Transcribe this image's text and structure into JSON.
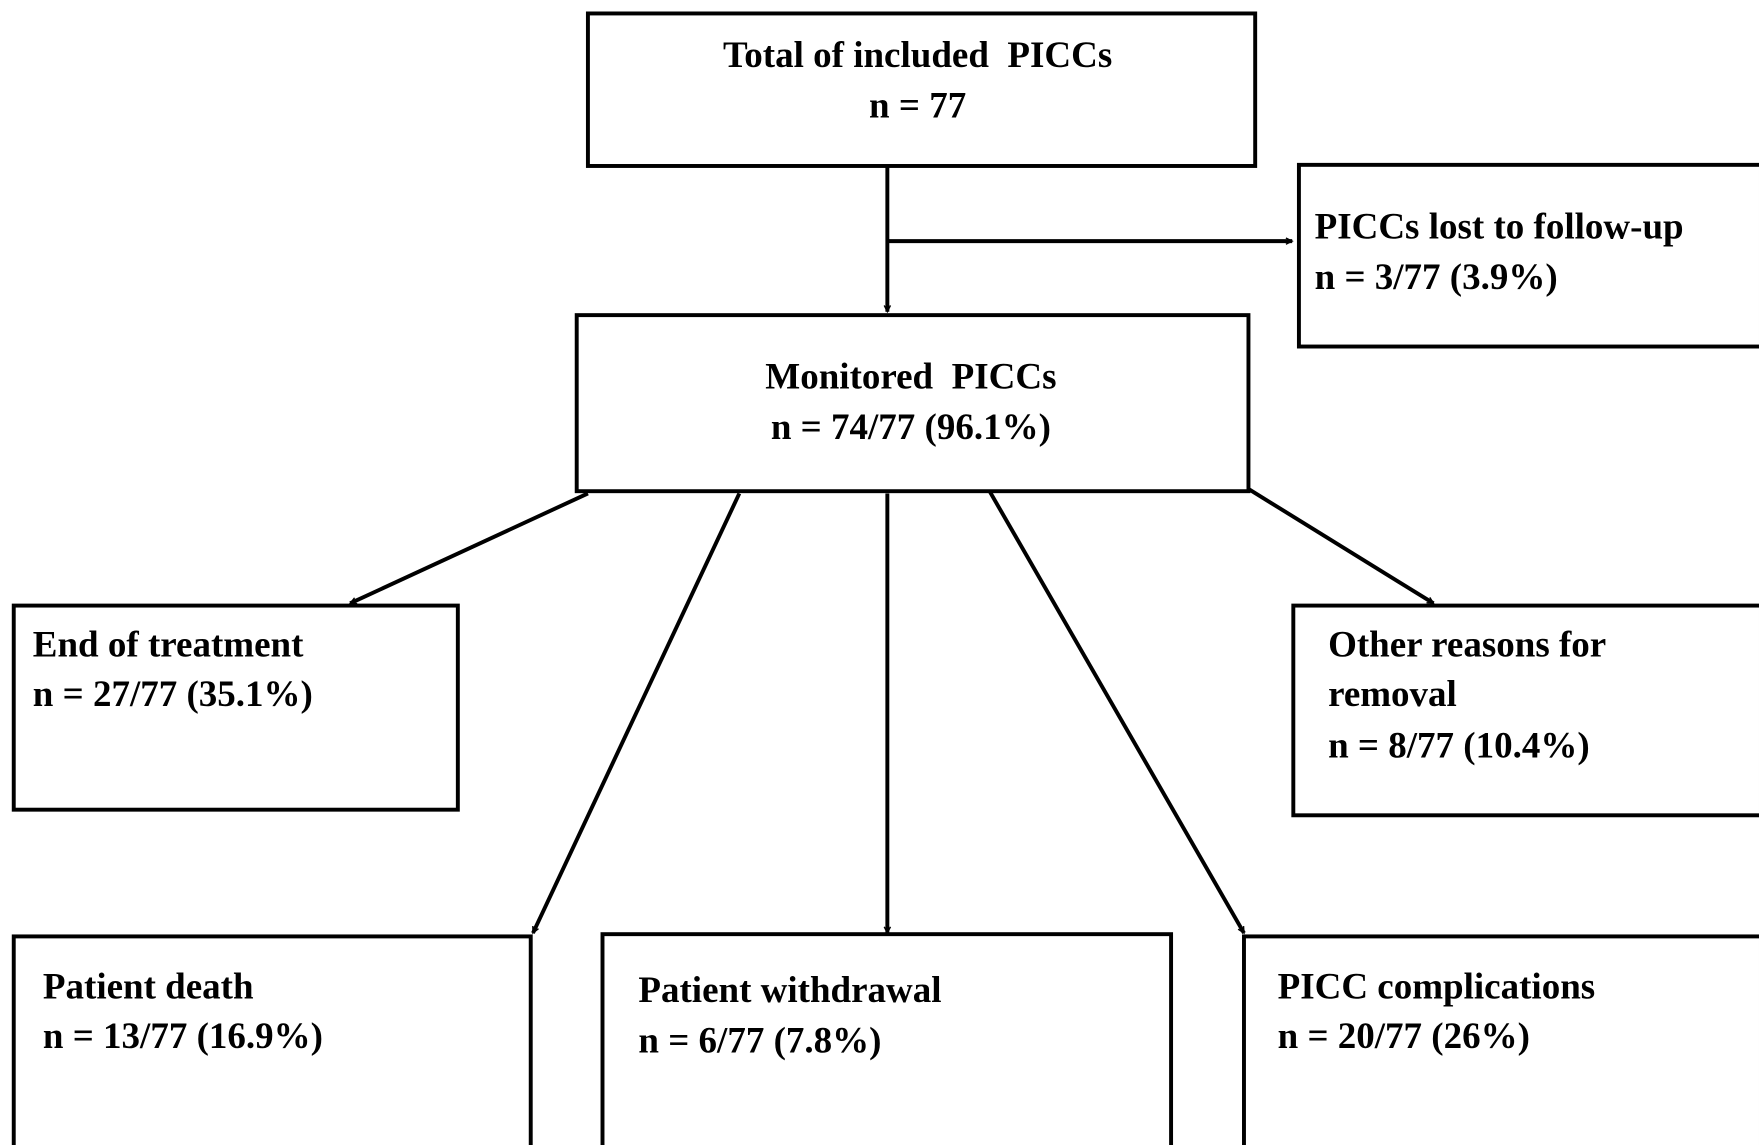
{
  "nodes": [
    {
      "lines": [
        "Total of included  PICCs",
        "n = 77"
      ]
    },
    {
      "lines": [
        "PICCs lost to follow-up",
        "n = 3/77 (3.9%)"
      ]
    },
    {
      "lines": [
        "Monitored  PICCs",
        "n = 74/77 (96.1%)"
      ]
    },
    {
      "lines": [
        "End of treatment",
        "n = 27/77 (35.1%)"
      ]
    },
    {
      "lines": [
        "Other reasons for",
        "removal",
        "n = 8/77 (10.4%)"
      ]
    },
    {
      "lines": [
        "Patient death",
        "n = 13/77 (16.9%)"
      ]
    },
    {
      "lines": [
        "Patient withdrawal",
        "n = 6/77 (7.8%)"
      ]
    },
    {
      "lines": [
        "PICC complications",
        "n = 20/77 (26%)"
      ]
    }
  ]
}
